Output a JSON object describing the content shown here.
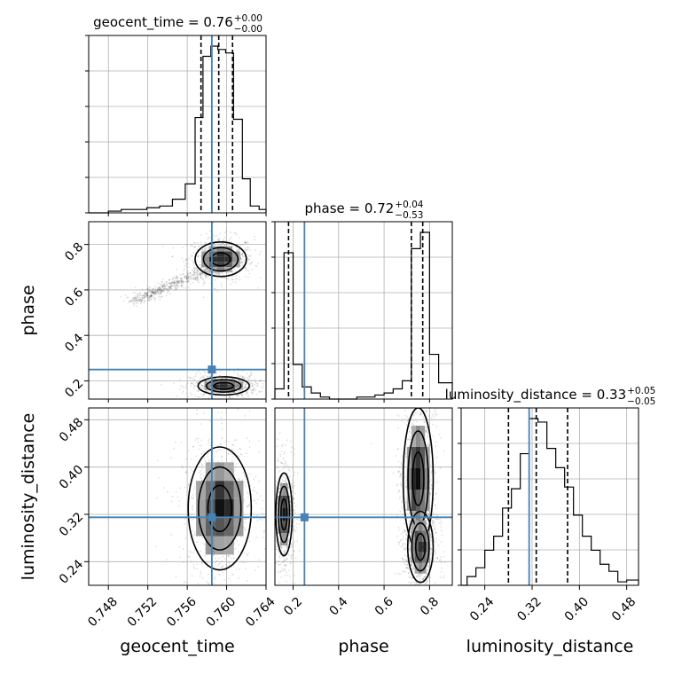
{
  "chart_data": {
    "type": "corner",
    "truth_color": "#4682b4",
    "parameters": [
      {
        "name": "geocent_time",
        "title_value": "0.76",
        "title_plus": "+0.00",
        "title_minus": "−0.00",
        "range": [
          0.746,
          0.764
        ],
        "ticks": [
          0.748,
          0.752,
          0.756,
          0.76,
          0.764
        ],
        "tick_labels": [
          "0.748",
          "0.752",
          "0.756",
          "0.760",
          "0.764"
        ],
        "truth": 0.7585,
        "quantiles": [
          0.7574,
          0.7592,
          0.7606
        ],
        "hist_edges": [
          0.746,
          0.748,
          0.7493,
          0.7506,
          0.7519,
          0.7532,
          0.7545,
          0.7558,
          0.7568,
          0.7576,
          0.7584,
          0.7591,
          0.7599,
          0.7607,
          0.7616,
          0.7624,
          0.7633,
          0.764
        ],
        "hist_values": [
          0.0,
          0.01,
          0.02,
          0.02,
          0.03,
          0.04,
          0.08,
          0.17,
          0.56,
          0.92,
          0.98,
          0.96,
          0.94,
          0.55,
          0.2,
          0.04,
          0.02
        ]
      },
      {
        "name": "phase",
        "title_value": "0.72",
        "title_plus": "+0.04",
        "title_minus": "−0.53",
        "range": [
          0.12,
          0.9
        ],
        "ticks": [
          0.2,
          0.4,
          0.6,
          0.8
        ],
        "tick_labels": [
          "0.2",
          "0.4",
          "0.6",
          "0.8"
        ],
        "truth": 0.25,
        "quantiles": [
          0.18,
          0.72,
          0.77
        ],
        "hist_edges": [
          0.12,
          0.16,
          0.2,
          0.24,
          0.28,
          0.32,
          0.36,
          0.4,
          0.44,
          0.48,
          0.52,
          0.56,
          0.6,
          0.64,
          0.68,
          0.72,
          0.76,
          0.8,
          0.84,
          0.9
        ],
        "hist_values": [
          0.05,
          0.72,
          0.17,
          0.06,
          0.03,
          0.01,
          0.0,
          0.0,
          0.0,
          0.01,
          0.01,
          0.02,
          0.03,
          0.05,
          0.09,
          0.74,
          0.82,
          0.22,
          0.08
        ]
      },
      {
        "name": "luminosity_distance",
        "title_value": "0.33",
        "title_plus": "+0.05",
        "title_minus": "−0.05",
        "range": [
          0.2,
          0.5
        ],
        "ticks": [
          0.24,
          0.32,
          0.4,
          0.48
        ],
        "tick_labels": [
          "0.24",
          "0.32",
          "0.40",
          "0.48"
        ],
        "truth": 0.315,
        "quantiles": [
          0.28,
          0.327,
          0.38
        ],
        "hist_edges": [
          0.2,
          0.21,
          0.225,
          0.24,
          0.255,
          0.27,
          0.285,
          0.3,
          0.315,
          0.33,
          0.345,
          0.36,
          0.375,
          0.39,
          0.405,
          0.42,
          0.435,
          0.45,
          0.465,
          0.48,
          0.5
        ],
        "hist_values": [
          0.0,
          0.05,
          0.1,
          0.2,
          0.28,
          0.44,
          0.55,
          0.75,
          0.95,
          0.93,
          0.78,
          0.67,
          0.56,
          0.4,
          0.28,
          0.2,
          0.12,
          0.08,
          0.02,
          0.03
        ]
      }
    ],
    "pairs": [
      {
        "x": "geocent_time",
        "y": "phase",
        "modes": [
          {
            "mx": 0.7594,
            "my": 0.735,
            "sx": 0.0013,
            "sy": 0.038
          },
          {
            "mx": 0.7597,
            "my": 0.178,
            "sx": 0.0013,
            "sy": 0.02
          }
        ]
      },
      {
        "x": "geocent_time",
        "y": "luminosity_distance",
        "modes": [
          {
            "mx": 0.7593,
            "my": 0.33,
            "sx": 0.0016,
            "sy": 0.052
          }
        ]
      },
      {
        "x": "phase",
        "y": "luminosity_distance",
        "modes": [
          {
            "mx": 0.16,
            "my": 0.32,
            "sx": 0.018,
            "sy": 0.035
          },
          {
            "mx": 0.75,
            "my": 0.38,
            "sx": 0.033,
            "sy": 0.06
          },
          {
            "mx": 0.76,
            "my": 0.265,
            "sx": 0.028,
            "sy": 0.03
          }
        ]
      }
    ],
    "quantile_levels": [
      0.16,
      0.5,
      0.84
    ],
    "grid": true
  }
}
